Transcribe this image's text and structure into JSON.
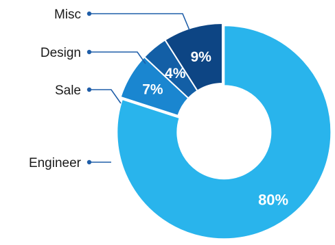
{
  "chart_data": {
    "type": "pie",
    "donut": true,
    "categories": [
      "Engineer",
      "Sale",
      "Design",
      "Misc"
    ],
    "values": [
      80,
      7,
      4,
      9
    ],
    "data_labels": [
      "80%",
      "7%",
      "4%",
      "9%"
    ],
    "colors": {
      "Engineer": "#29b4ec",
      "Sale": "#1a86d0",
      "Design": "#135fa6",
      "Misc": "#0d4584",
      "leader_line": "#1f5ea8"
    },
    "exploded_category": "Engineer",
    "legend": "leader-lines-left"
  }
}
